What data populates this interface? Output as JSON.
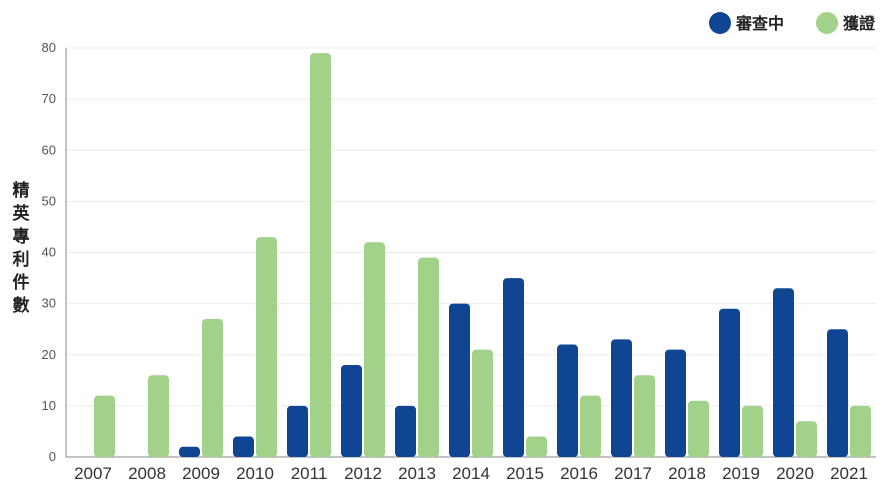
{
  "chart_data": {
    "type": "bar",
    "categories": [
      "2007",
      "2008",
      "2009",
      "2010",
      "2011",
      "2012",
      "2013",
      "2014",
      "2015",
      "2016",
      "2017",
      "2018",
      "2019",
      "2020",
      "2021"
    ],
    "series": [
      {
        "name": "審查中",
        "color": "#0f4592",
        "values": [
          0,
          0,
          2,
          4,
          10,
          18,
          10,
          30,
          35,
          22,
          23,
          21,
          29,
          33,
          25
        ]
      },
      {
        "name": "獲證",
        "color": "#a2d18a",
        "values": [
          12,
          16,
          27,
          43,
          79,
          42,
          39,
          21,
          4,
          12,
          16,
          11,
          10,
          7,
          10
        ]
      }
    ],
    "yticks": [
      "0",
      "10",
      "20",
      "30",
      "40",
      "50",
      "60",
      "70",
      "80"
    ],
    "ylim": [
      0,
      80
    ],
    "ylabel": "精英專利件數",
    "ylabel_chars": [
      "精",
      "英",
      "專",
      "利",
      "件",
      "數"
    ],
    "legend_position": "top-right",
    "title": ""
  }
}
